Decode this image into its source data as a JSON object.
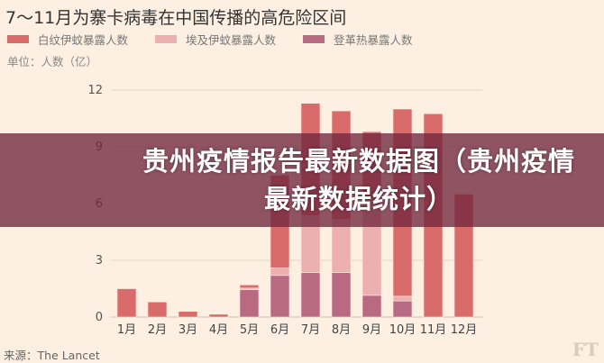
{
  "chart_data": {
    "type": "bar",
    "stacked": true,
    "title": "7～11月为寨卡病毒在中国传播的高危险区间",
    "unit_label": "单位：人数（亿）",
    "categories": [
      "1月",
      "2月",
      "3月",
      "4月",
      "5月",
      "6月",
      "7月",
      "8月",
      "9月",
      "10月",
      "11月",
      "12月"
    ],
    "series": [
      {
        "name": "登革热暴露人数",
        "color": "#b86a82",
        "values": [
          0,
          0,
          0,
          0,
          1.45,
          2.2,
          2.35,
          2.35,
          1.15,
          0.85,
          0,
          0
        ]
      },
      {
        "name": "埃及伊蚊暴露人数",
        "color": "#ecb0b0",
        "values": [
          0,
          0,
          0,
          0,
          0.08,
          0.4,
          3.0,
          2.8,
          5.0,
          0.25,
          0,
          0
        ]
      },
      {
        "name": "白纹伊蚊暴露人数",
        "color": "#d96b6b",
        "values": [
          1.5,
          0.8,
          0.3,
          0.15,
          0.17,
          4.9,
          5.95,
          5.75,
          3.65,
          9.9,
          10.75,
          6.5
        ]
      }
    ],
    "legend_order": [
      "白纹伊蚊暴露人数",
      "埃及伊蚊暴露人数",
      "登革热暴露人数"
    ],
    "yticks": [
      0,
      3,
      6,
      9,
      12
    ],
    "ylim": [
      0,
      12
    ],
    "grid": true,
    "legend_placement": "top-left"
  },
  "source": "来源：The Lancet",
  "logo": "FT",
  "banner": {
    "line1": "贵州疫情报告最新数据图（贵州疫情",
    "line2": "最新数据统计）"
  }
}
